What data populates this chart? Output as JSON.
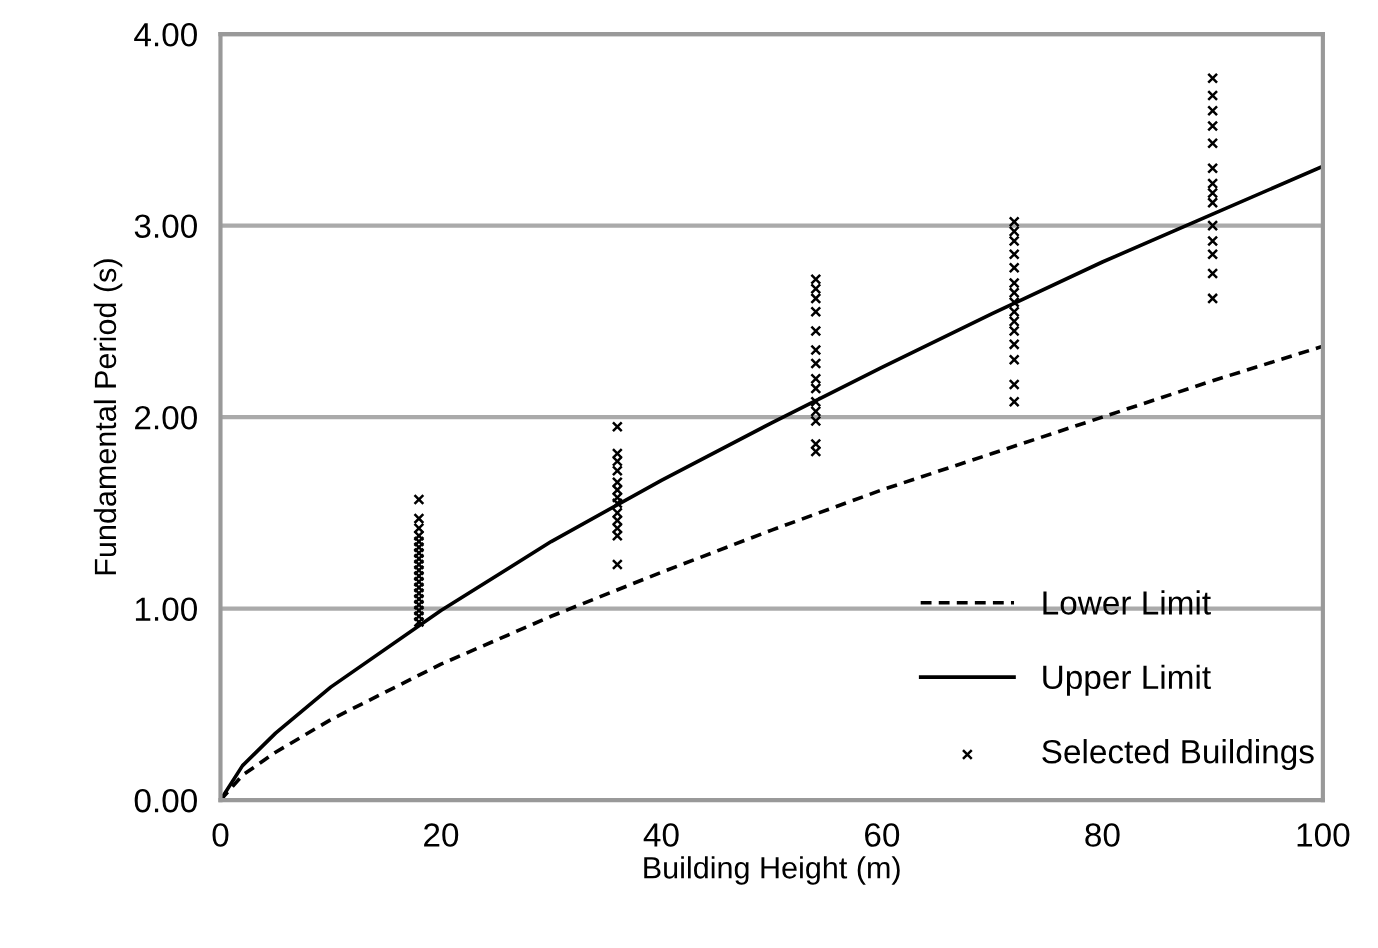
{
  "chart_data": {
    "type": "line",
    "xlabel": "Building Height (m)",
    "ylabel": "Fundamental Period (s)",
    "xlim": [
      0,
      100
    ],
    "xticks": [
      0,
      20,
      40,
      60,
      80,
      100
    ],
    "ylim": [
      0,
      4
    ],
    "yticks": [
      {
        "value": 0,
        "label": "0.00"
      },
      {
        "value": 1,
        "label": "1.00"
      },
      {
        "value": 2,
        "label": "2.00"
      },
      {
        "value": 3,
        "label": "3.00"
      },
      {
        "value": 4,
        "label": "4.00"
      }
    ],
    "grid": "y",
    "legend": "bottom right",
    "series": [
      {
        "name": "Lower Limit",
        "color": "#000000",
        "line_style": "dashed",
        "marker": "none",
        "x": [
          0,
          2,
          5,
          10,
          20,
          30,
          40,
          50,
          60,
          70,
          80,
          90,
          100
        ],
        "values": [
          0,
          0.13,
          0.25,
          0.42,
          0.71,
          0.96,
          1.19,
          1.41,
          1.62,
          1.81,
          2.0,
          2.19,
          2.37
        ]
      },
      {
        "name": "Upper Limit",
        "color": "#000000",
        "line_style": "solid",
        "marker": "none",
        "x": [
          0,
          2,
          5,
          10,
          20,
          30,
          40,
          50,
          60,
          70,
          80,
          90,
          100
        ],
        "values": [
          0,
          0.18,
          0.35,
          0.59,
          0.99,
          1.35,
          1.67,
          1.97,
          2.26,
          2.54,
          2.81,
          3.06,
          3.31
        ]
      },
      {
        "name": "Selected Buildings",
        "type": "scatter",
        "color": "#000000",
        "marker": "cross",
        "x": [
          18,
          18,
          18,
          18,
          18,
          18,
          18,
          18,
          18,
          18,
          18,
          18,
          18,
          18,
          18,
          18,
          18,
          18,
          18,
          36,
          36,
          36,
          36,
          36,
          36,
          36,
          36,
          36,
          36,
          36,
          36,
          36,
          54,
          54,
          54,
          54,
          54,
          54,
          54,
          54,
          54,
          54,
          54,
          54,
          54,
          54,
          72,
          72,
          72,
          72,
          72,
          72,
          72,
          72,
          72,
          72,
          72,
          72,
          72,
          72,
          72,
          90,
          90,
          90,
          90,
          90,
          90,
          90,
          90,
          90,
          90,
          90,
          90,
          90,
          90
        ],
        "values": [
          0.93,
          0.96,
          0.99,
          1.02,
          1.05,
          1.08,
          1.11,
          1.14,
          1.17,
          1.2,
          1.23,
          1.26,
          1.29,
          1.32,
          1.35,
          1.38,
          1.42,
          1.47,
          1.57,
          1.23,
          1.38,
          1.42,
          1.46,
          1.5,
          1.55,
          1.58,
          1.62,
          1.66,
          1.72,
          1.77,
          1.81,
          1.95,
          1.82,
          1.86,
          1.98,
          2.03,
          2.08,
          2.15,
          2.2,
          2.28,
          2.35,
          2.45,
          2.55,
          2.62,
          2.67,
          2.72,
          2.08,
          2.17,
          2.3,
          2.38,
          2.45,
          2.5,
          2.55,
          2.6,
          2.65,
          2.7,
          2.78,
          2.85,
          2.92,
          2.97,
          3.02,
          2.62,
          2.75,
          2.85,
          2.92,
          3.0,
          3.12,
          3.17,
          3.22,
          3.3,
          3.43,
          3.52,
          3.6,
          3.68,
          3.77
        ]
      }
    ]
  }
}
